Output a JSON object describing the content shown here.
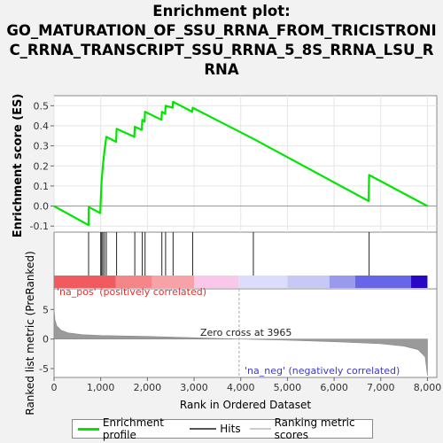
{
  "title": {
    "lines": [
      "Enrichment plot:",
      "GO_MATURATION_OF_SSU_RRNA_FROM_TRICISTRONI",
      "C_RRNA_TRANSCRIPT_SSU_RRNA_5_8S_RRNA_LSU_R",
      "RNA"
    ]
  },
  "chart_data": {
    "type": "line",
    "ylabel_top": "Enrichment score (ES)",
    "ylabel_bottom": "Ranked list metric (PreRanked)",
    "xlabel": "Rank in Ordered Dataset",
    "xlim": [
      0,
      8200
    ],
    "x_ticks": [
      0,
      1000,
      2000,
      3000,
      4000,
      5000,
      6000,
      7000,
      8000
    ],
    "x_tick_labels": [
      "0",
      "1,000",
      "2,000",
      "3,000",
      "4,000",
      "5,000",
      "6,000",
      "7,000",
      "8,000"
    ],
    "es_ylim": [
      -0.13,
      0.55
    ],
    "es_ticks": [
      -0.1,
      0.0,
      0.1,
      0.2,
      0.3,
      0.4,
      0.5
    ],
    "es_tick_labels": [
      "-0.1",
      "0.0",
      "0.1",
      "0.2",
      "0.3",
      "0.4",
      "0.5"
    ],
    "es_series": {
      "name": "Enrichment profile",
      "color": "#00e600",
      "points": [
        [
          0,
          0.0
        ],
        [
          740,
          -0.095
        ],
        [
          745,
          -0.005
        ],
        [
          990,
          -0.035
        ],
        [
          1000,
          0.03
        ],
        [
          1020,
          0.125
        ],
        [
          1045,
          0.2
        ],
        [
          1080,
          0.275
        ],
        [
          1120,
          0.345
        ],
        [
          1330,
          0.32
        ],
        [
          1340,
          0.385
        ],
        [
          1720,
          0.345
        ],
        [
          1730,
          0.395
        ],
        [
          1880,
          0.38
        ],
        [
          1890,
          0.43
        ],
        [
          1940,
          0.42
        ],
        [
          1950,
          0.47
        ],
        [
          2300,
          0.43
        ],
        [
          2310,
          0.47
        ],
        [
          2380,
          0.46
        ],
        [
          2390,
          0.5
        ],
        [
          2540,
          0.49
        ],
        [
          2550,
          0.52
        ],
        [
          2960,
          0.47
        ],
        [
          2970,
          0.49
        ],
        [
          4270,
          0.335
        ],
        [
          6740,
          0.025
        ],
        [
          6750,
          0.155
        ],
        [
          8000,
          0.0
        ]
      ]
    },
    "hits": {
      "name": "Hits",
      "positions": [
        740,
        1000,
        1020,
        1045,
        1080,
        1120,
        1340,
        1730,
        1890,
        1950,
        2310,
        2390,
        2550,
        2970,
        4270,
        6750
      ]
    },
    "ranked_metric": {
      "name": "Ranking metric scores",
      "ylim": [
        -6.5,
        8.5
      ],
      "ticks": [
        -5,
        0,
        5
      ],
      "tick_labels": [
        "-5",
        "0",
        "5"
      ],
      "profile": [
        [
          0,
          5.0
        ],
        [
          20,
          3.2
        ],
        [
          60,
          2.2
        ],
        [
          150,
          1.5
        ],
        [
          300,
          1.05
        ],
        [
          600,
          0.75
        ],
        [
          1000,
          0.6
        ],
        [
          2000,
          0.45
        ],
        [
          3000,
          0.22
        ],
        [
          3965,
          0.0
        ],
        [
          5000,
          -0.2
        ],
        [
          6000,
          -0.45
        ],
        [
          7000,
          -0.8
        ],
        [
          7500,
          -1.2
        ],
        [
          7800,
          -1.8
        ],
        [
          7950,
          -3.0
        ],
        [
          8000,
          -6.2
        ]
      ]
    },
    "zero_cross": {
      "x": 3965,
      "label": "Zero cross at 3965"
    },
    "pos_label": "'na_pos' (positively correlated)",
    "neg_label": "'na_neg' (negatively correlated)",
    "heat_segments": [
      {
        "x0": 0,
        "x1": 1320,
        "color": "#f05b60"
      },
      {
        "x0": 1320,
        "x1": 2100,
        "color": "#f48589"
      },
      {
        "x0": 2100,
        "x1": 3000,
        "color": "#f6a2a6"
      },
      {
        "x0": 3000,
        "x1": 3950,
        "color": "#f8c8e8"
      },
      {
        "x0": 3950,
        "x1": 5000,
        "color": "#dcdcfb"
      },
      {
        "x0": 5000,
        "x1": 5900,
        "color": "#c8c8f5"
      },
      {
        "x0": 5900,
        "x1": 6450,
        "color": "#9a9aec"
      },
      {
        "x0": 6450,
        "x1": 7650,
        "color": "#6666e6"
      },
      {
        "x0": 7650,
        "x1": 8000,
        "color": "#2a06c8"
      }
    ]
  },
  "legend": {
    "items": [
      {
        "label": "Enrichment profile",
        "color": "#00e600"
      },
      {
        "label": "Hits",
        "color": "#555555"
      },
      {
        "label": "Ranking metric scores",
        "color": "#cccccc"
      }
    ]
  }
}
